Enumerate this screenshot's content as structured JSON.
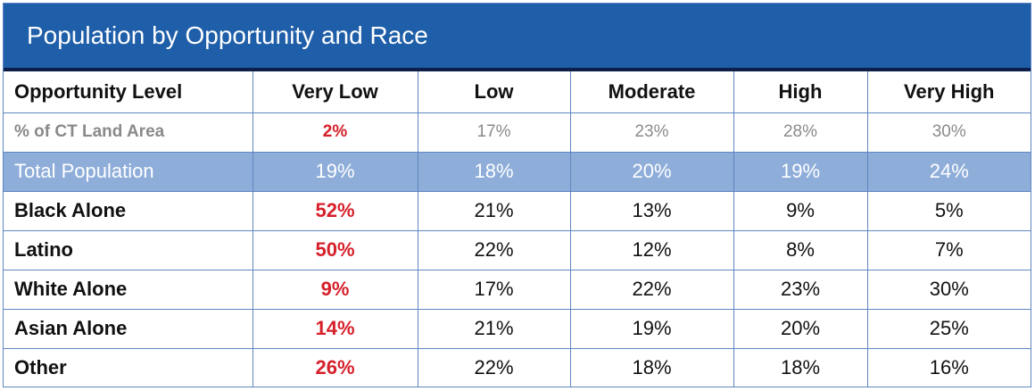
{
  "title": "Population by Opportunity and Race",
  "colors": {
    "header_bg": "#1f5ea8",
    "header_rule": "#0c1f4a",
    "grid_line": "#5f87c2",
    "total_row_bg": "#8eadd9",
    "highlight": "#d6202a",
    "muted": "#8a8a8a"
  },
  "table": {
    "columns": [
      "Opportunity Level",
      "Very Low",
      "Low",
      "Moderate",
      "High",
      "Very High"
    ],
    "land_area": {
      "label": "% of CT Land Area",
      "values": [
        "2%",
        "17%",
        "23%",
        "28%",
        "30%"
      ]
    },
    "total": {
      "label": "Total Population",
      "values": [
        "19%",
        "18%",
        "20%",
        "19%",
        "24%"
      ]
    },
    "rows": [
      {
        "label": "Black Alone",
        "values": [
          "52%",
          "21%",
          "13%",
          "9%",
          "5%"
        ]
      },
      {
        "label": "Latino",
        "values": [
          "50%",
          "22%",
          "12%",
          "8%",
          "7%"
        ]
      },
      {
        "label": "White Alone",
        "values": [
          "9%",
          "17%",
          "22%",
          "23%",
          "30%"
        ]
      },
      {
        "label": "Asian Alone",
        "values": [
          "14%",
          "21%",
          "19%",
          "20%",
          "25%"
        ]
      },
      {
        "label": "Other",
        "values": [
          "26%",
          "22%",
          "18%",
          "18%",
          "16%"
        ]
      }
    ]
  }
}
